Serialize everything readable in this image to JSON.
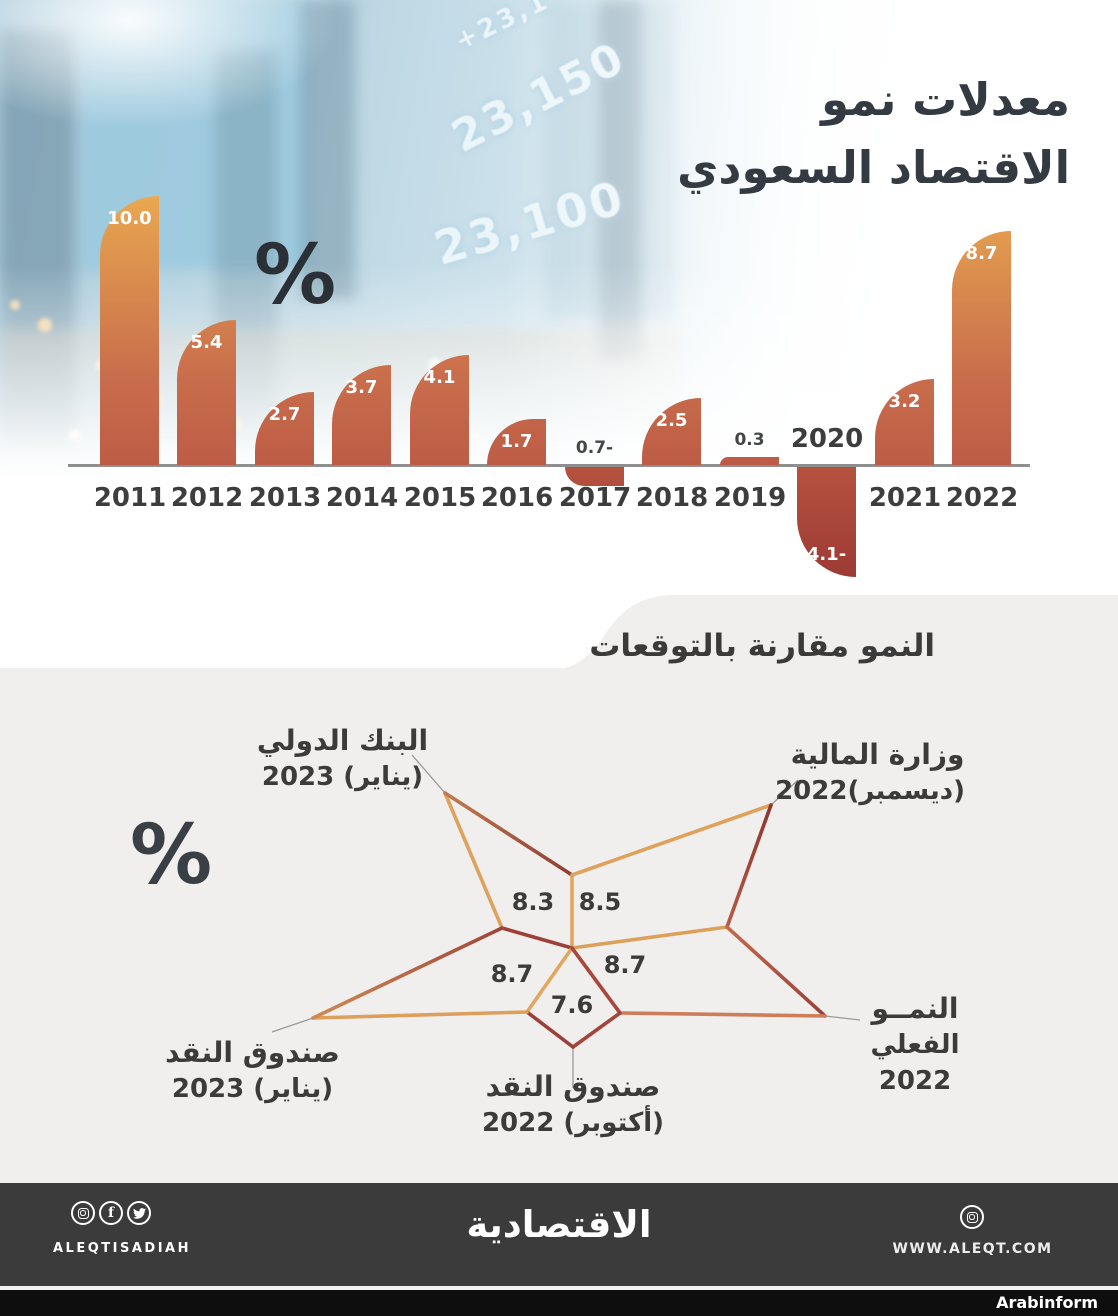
{
  "header": {
    "title_line1": "معدلات نمو",
    "title_line2": "الاقتصاد السعودي"
  },
  "background": {
    "ticker_numbers": [
      "+23,1",
      "23,150",
      "23,100"
    ]
  },
  "chart_data": [
    {
      "type": "bar",
      "title": "معدلات نمو الاقتصاد السعودي",
      "unit": "%",
      "ylim": [
        -4.1,
        10.0
      ],
      "categories": [
        "2011",
        "2012",
        "2013",
        "2014",
        "2015",
        "2016",
        "2017",
        "2018",
        "2019",
        "2020",
        "2021",
        "2022"
      ],
      "values": [
        10.0,
        5.4,
        2.7,
        3.7,
        4.1,
        1.7,
        -0.7,
        2.5,
        0.3,
        -4.1,
        3.2,
        8.7
      ],
      "points": [
        {
          "year": "2011",
          "value": 10.0,
          "label": "10.0",
          "value_pos": "in-top",
          "year_pos": "below"
        },
        {
          "year": "2012",
          "value": 5.4,
          "label": "5.4",
          "value_pos": "in-top",
          "year_pos": "below"
        },
        {
          "year": "2013",
          "value": 2.7,
          "label": "2.7",
          "value_pos": "in-top",
          "year_pos": "below"
        },
        {
          "year": "2014",
          "value": 3.7,
          "label": "3.7",
          "value_pos": "in-top",
          "year_pos": "below"
        },
        {
          "year": "2015",
          "value": 4.1,
          "label": "4.1",
          "value_pos": "in-top",
          "year_pos": "below"
        },
        {
          "year": "2016",
          "value": 1.7,
          "label": "1.7",
          "value_pos": "in-top",
          "year_pos": "below"
        },
        {
          "year": "2017",
          "value": -0.7,
          "label": "0.7-",
          "value_pos": "above-axis",
          "year_pos": "below"
        },
        {
          "year": "2018",
          "value": 2.5,
          "label": "2.5",
          "value_pos": "in-top",
          "year_pos": "below"
        },
        {
          "year": "2019",
          "value": 0.3,
          "label": "0.3",
          "value_pos": "above-bar",
          "year_pos": "below"
        },
        {
          "year": "2020",
          "value": -4.1,
          "label": "4.1-",
          "value_pos": "in-bottom",
          "year_pos": "above"
        },
        {
          "year": "2021",
          "value": 3.2,
          "label": "3.2",
          "value_pos": "in-top",
          "year_pos": "below"
        },
        {
          "year": "2022",
          "value": 8.7,
          "label": "8.7",
          "value_pos": "in-top",
          "year_pos": "below"
        }
      ]
    },
    {
      "type": "radar",
      "title": "النمو مقارنة بالتوقعات",
      "unit": "%",
      "points": [
        {
          "name": "البنك الدولي (يناير) 2023",
          "label_line1": "البنك الدولي",
          "label_line2": "(يناير) 2023",
          "value": 8.3,
          "value_label": "8.3"
        },
        {
          "name": "وزارة المالية (ديسمبر) 2022",
          "label_line1": "وزارة المالية",
          "label_line2": "(ديسمبر)2022",
          "value": 8.5,
          "value_label": "8.5"
        },
        {
          "name": "النمو الفعلي 2022",
          "label_line1": "النمــو",
          "label_line2": "الفعلي",
          "label_line3": "2022",
          "value": 8.7,
          "value_label": "8.7"
        },
        {
          "name": "صندوق النقد (أكتوبر) 2022",
          "label_line1": "صندوق النقد",
          "label_line2": "(أكتوبر) 2022",
          "value": 7.6,
          "value_label": "7.6"
        },
        {
          "name": "صندوق النقد (يناير) 2023",
          "label_line1": "صندوق النقد",
          "label_line2": "(يناير) 2023",
          "value": 8.7,
          "value_label": "8.7"
        }
      ]
    }
  ],
  "footer": {
    "brand_logo": "الاقتصادية",
    "social_handle": "ALEQTISADIAH",
    "website": "WWW.ALEQT.COM",
    "facebook_glyph": "f",
    "watermark": "Arabinform"
  }
}
